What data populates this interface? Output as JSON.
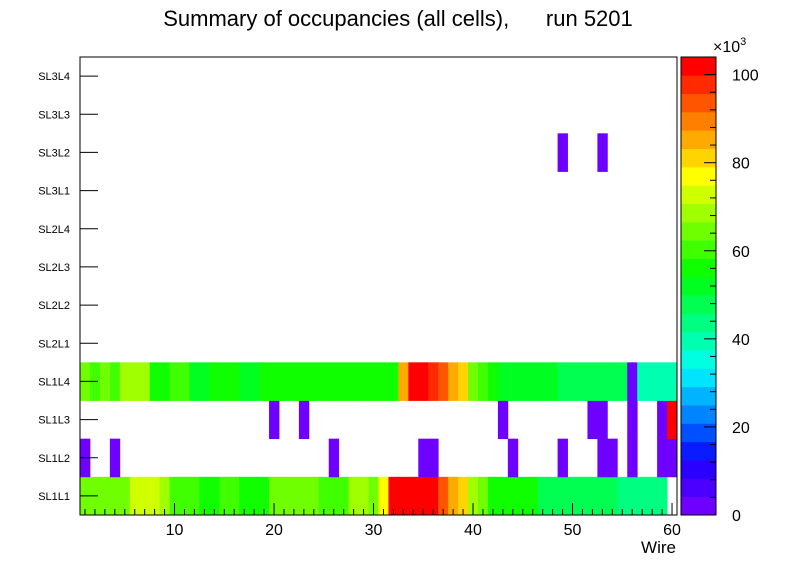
{
  "chart_data": {
    "type": "heatmap",
    "title": "Summary of occupancies (all cells),      run 5201",
    "xlabel": "Wire",
    "ylabel": "",
    "xlim": [
      0.5,
      60.5
    ],
    "x_ticks": [
      10,
      20,
      30,
      40,
      50,
      60
    ],
    "y_categories": [
      "SL1L1",
      "SL1L2",
      "SL1L3",
      "SL1L4",
      "SL2L1",
      "SL2L2",
      "SL2L3",
      "SL2L4",
      "SL3L1",
      "SL3L2",
      "SL3L3",
      "SL3L4"
    ],
    "z_range": [
      0,
      104000
    ],
    "z_ticks": [
      0,
      20,
      40,
      60,
      80,
      100
    ],
    "z_multiplier_label": "×10",
    "z_multiplier_exp": "3",
    "palette": [
      "#6e00ff",
      "#4b00ff",
      "#2a00ff",
      "#0a1cff",
      "#0050ff",
      "#0084ff",
      "#00b4ff",
      "#00e4ff",
      "#00ffe0",
      "#00ffb0",
      "#00ff80",
      "#00ff50",
      "#00ff20",
      "#10ff00",
      "#40ff00",
      "#70ff00",
      "#a0ff00",
      "#d0ff00",
      "#ffff00",
      "#ffd400",
      "#ffaa00",
      "#ff8000",
      "#ff5500",
      "#ff2a00",
      "#ff0000"
    ],
    "rows": {
      "SL1L1": [
        66,
        66,
        63,
        63,
        63,
        72,
        72,
        72,
        68,
        62,
        62,
        62,
        58,
        58,
        62,
        62,
        58,
        58,
        58,
        66,
        66,
        66,
        66,
        66,
        60,
        60,
        60,
        68,
        68,
        66,
        78,
        102,
        102,
        102,
        102,
        100,
        92,
        85,
        80,
        68,
        64,
        58,
        58,
        58,
        58,
        58,
        48,
        48,
        48,
        48,
        48,
        48,
        48,
        48,
        44,
        44,
        44,
        44,
        44,
        0
      ],
      "SL1L2": [
        3,
        0,
        0,
        3,
        0,
        0,
        0,
        0,
        0,
        0,
        0,
        0,
        0,
        0,
        0,
        0,
        0,
        0,
        0,
        0,
        0,
        0,
        0,
        0,
        0,
        3,
        0,
        0,
        0,
        0,
        0,
        0,
        0,
        0,
        3,
        3,
        0,
        0,
        0,
        0,
        0,
        0,
        0,
        3,
        0,
        0,
        0,
        0,
        3,
        0,
        0,
        0,
        3,
        3,
        0,
        3,
        0,
        0,
        3,
        3
      ],
      "SL1L3": [
        0,
        0,
        0,
        0,
        0,
        0,
        0,
        0,
        0,
        0,
        0,
        0,
        0,
        0,
        0,
        0,
        0,
        0,
        0,
        3,
        0,
        0,
        3,
        0,
        0,
        0,
        0,
        0,
        0,
        0,
        0,
        0,
        0,
        0,
        0,
        0,
        0,
        0,
        0,
        0,
        0,
        0,
        3,
        0,
        0,
        0,
        0,
        0,
        0,
        0,
        0,
        3,
        3,
        0,
        0,
        3,
        0,
        0,
        3,
        100
      ],
      "SL1L4": [
        66,
        62,
        66,
        62,
        68,
        68,
        68,
        58,
        58,
        62,
        62,
        50,
        50,
        58,
        58,
        58,
        52,
        52,
        58,
        58,
        58,
        58,
        58,
        58,
        58,
        58,
        58,
        58,
        58,
        58,
        58,
        58,
        84,
        102,
        102,
        98,
        92,
        87,
        82,
        66,
        60,
        58,
        52,
        52,
        52,
        52,
        52,
        52,
        48,
        48,
        48,
        48,
        48,
        48,
        48,
        3,
        40,
        40,
        40,
        40
      ],
      "SL2L1": [],
      "SL2L2": [],
      "SL2L3": [],
      "SL2L4": [],
      "SL3L1": [],
      "SL3L2": [
        0,
        0,
        0,
        0,
        0,
        0,
        0,
        0,
        0,
        0,
        0,
        0,
        0,
        0,
        0,
        0,
        0,
        0,
        0,
        0,
        0,
        0,
        0,
        0,
        0,
        0,
        0,
        0,
        0,
        0,
        0,
        0,
        0,
        0,
        0,
        0,
        0,
        0,
        0,
        0,
        0,
        0,
        0,
        0,
        0,
        0,
        0,
        0,
        3,
        0,
        0,
        0,
        3,
        0,
        0,
        0,
        0,
        0,
        0,
        0
      ],
      "SL3L3": [],
      "SL3L4": []
    },
    "rows_units": "thousands of counts"
  }
}
